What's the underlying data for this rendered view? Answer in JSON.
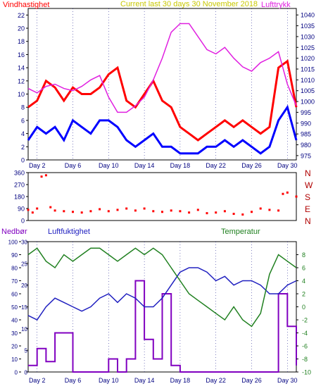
{
  "page": {
    "background": "#ffffff",
    "plot_background": "#ffffff"
  },
  "colors": {
    "wind_gust": "#ff0000",
    "wind_avg": "#0000ff",
    "pressure": "#e020e0",
    "direction": "#ff0000",
    "rain": "#8000c0",
    "humidity": "#2020c0",
    "temperature": "#208020",
    "axis_text": "#000080",
    "compass_text": "#b00000",
    "title_text": "#c8c800",
    "grid": "#000080"
  },
  "top_chart": {
    "title": "Current last 30 days 30 November 2018",
    "left_label": "Vindhastighet",
    "right_label": "Lufttrykk",
    "left_ticks": [
      "0",
      "2",
      "4",
      "6",
      "8",
      "10",
      "12",
      "14",
      "16",
      "18",
      "20",
      "22"
    ],
    "right_ticks": [
      "975",
      "980",
      "985",
      "990",
      "995",
      "1000",
      "1005",
      "1010",
      "1015",
      "1020",
      "1025",
      "1030",
      "1035",
      "1040"
    ]
  },
  "mid_chart": {
    "left_ticks": [
      "0",
      "90",
      "180",
      "270",
      "360"
    ],
    "compass": [
      "N",
      "W",
      "S",
      "E",
      "N"
    ]
  },
  "bottom_chart": {
    "rain_label": "Nedbør",
    "humidity_label": "Luftfuktighet",
    "temp_label": "Temperatur",
    "rain_ticks": [
      "0",
      "10",
      "20",
      "30",
      "40",
      "50",
      "60",
      "70",
      "80",
      "90",
      "100"
    ],
    "humidity_ticks": [
      "0",
      "5",
      "10",
      "15",
      "20",
      "25",
      "30"
    ],
    "temp_ticks": [
      "-10",
      "-8",
      "-6",
      "-4",
      "-2",
      "0",
      "2",
      "4",
      "6",
      "8"
    ]
  },
  "x_ticks": [
    "Day 2",
    "Day 6",
    "Day 10",
    "Day 14",
    "Day 18",
    "Day 22",
    "Day 26",
    "Day 30"
  ],
  "chart_data": [
    {
      "type": "line",
      "name": "wind-pressure",
      "x": [
        1,
        2,
        3,
        4,
        5,
        6,
        7,
        8,
        9,
        10,
        11,
        12,
        13,
        14,
        15,
        16,
        17,
        18,
        19,
        20,
        21,
        22,
        23,
        24,
        25,
        26,
        27,
        28,
        29,
        30,
        31
      ],
      "series": [
        {
          "name": "Vindhastighet",
          "axis": "left",
          "values": [
            8,
            9,
            12,
            11,
            9,
            11,
            10,
            10,
            11,
            13,
            14,
            9,
            8,
            10,
            12,
            9,
            8,
            5,
            4,
            3,
            4,
            5,
            6,
            5,
            6,
            5,
            4,
            5,
            14,
            15,
            8
          ]
        },
        {
          "name": "Vindhastighet",
          "axis": "left",
          "values": [
            3,
            5,
            4,
            5,
            3,
            6,
            5,
            4,
            6,
            6,
            5,
            3,
            2,
            3,
            4,
            2,
            2,
            1,
            1,
            1,
            2,
            2,
            3,
            2,
            3,
            2,
            1,
            2,
            6,
            8,
            3
          ]
        },
        {
          "name": "Lufttrykk",
          "axis": "right",
          "values": [
            1006,
            1004,
            1007,
            1008,
            1006,
            1005,
            1007,
            1010,
            1012,
            1002,
            995,
            995,
            998,
            1002,
            1010,
            1020,
            1032,
            1036,
            1036,
            1030,
            1024,
            1022,
            1025,
            1020,
            1016,
            1014,
            1018,
            1020,
            1023,
            1008,
            998
          ]
        }
      ],
      "ylim": [
        0,
        23
      ],
      "ylim_right": [
        973,
        1043
      ]
    },
    {
      "type": "scatter",
      "name": "wind-direction",
      "x": [
        1,
        1.5,
        2,
        2.5,
        3,
        3.5,
        4,
        5,
        6,
        7,
        8,
        9,
        10,
        11,
        12,
        13,
        14,
        15,
        16,
        17,
        18,
        19,
        20,
        21,
        22,
        23,
        24,
        25,
        26,
        27,
        28,
        29,
        29.5,
        30,
        31
      ],
      "values": [
        80,
        60,
        90,
        330,
        340,
        100,
        75,
        70,
        65,
        60,
        70,
        85,
        70,
        80,
        90,
        75,
        90,
        70,
        65,
        75,
        70,
        60,
        80,
        55,
        60,
        70,
        50,
        45,
        65,
        90,
        80,
        75,
        200,
        210,
        180
      ],
      "ylim": [
        0,
        360
      ]
    },
    {
      "type": "line",
      "name": "rain-humidity-temperature",
      "x": [
        1,
        2,
        3,
        4,
        5,
        6,
        7,
        8,
        9,
        10,
        11,
        12,
        13,
        14,
        15,
        16,
        17,
        18,
        19,
        20,
        21,
        22,
        23,
        24,
        25,
        26,
        27,
        28,
        29,
        30,
        31
      ],
      "series": [
        {
          "name": "Nedbør",
          "axis": "rain",
          "values": [
            5,
            18,
            8,
            30,
            30,
            0,
            0,
            0,
            0,
            10,
            0,
            10,
            70,
            25,
            10,
            60,
            5,
            0,
            0,
            0,
            0,
            0,
            0,
            0,
            0,
            0,
            0,
            0,
            60,
            35,
            5
          ]
        },
        {
          "name": "Luftfuktighet",
          "axis": "humidity",
          "values": [
            13,
            12,
            15,
            17,
            16,
            15,
            14,
            15,
            17,
            18,
            16,
            18,
            17,
            15,
            15,
            17,
            20,
            23,
            24,
            24,
            23,
            21,
            22,
            20,
            21,
            21,
            20,
            18,
            18,
            20,
            21
          ]
        },
        {
          "name": "Temperatur",
          "axis": "temp",
          "values": [
            8,
            9,
            7,
            6,
            8,
            7,
            8,
            9,
            9,
            8,
            7,
            8,
            9,
            8,
            9,
            8,
            6,
            4,
            2,
            1,
            0,
            -1,
            -2,
            0,
            -2,
            -3,
            -1,
            5,
            8,
            7,
            6
          ]
        }
      ],
      "ylim_rain": [
        0,
        100
      ],
      "ylim_humidity": [
        0,
        30
      ],
      "ylim_temp": [
        -10,
        10
      ]
    }
  ]
}
